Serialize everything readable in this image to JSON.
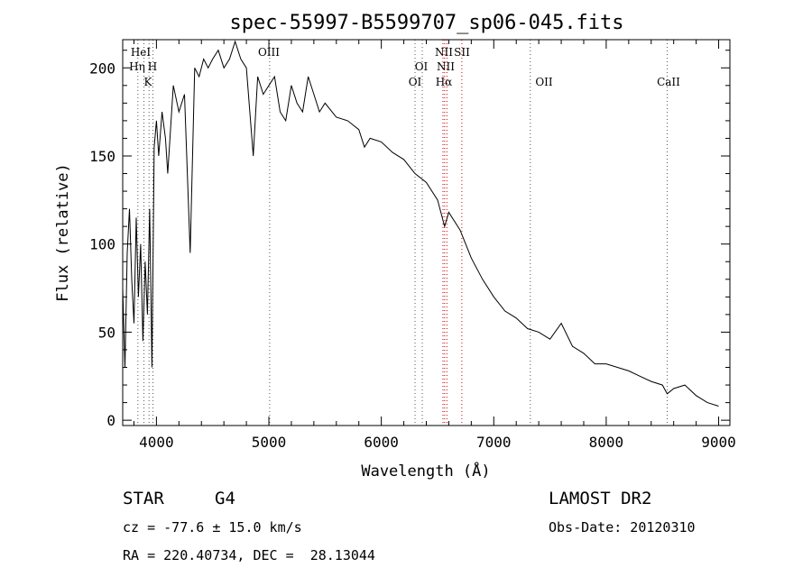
{
  "chart_data": {
    "type": "line",
    "title": "spec-55997-B5599707_sp06-045.fits",
    "xlabel": "Wavelength (Å)",
    "ylabel": "Flux (relative)",
    "xlim": [
      3700,
      9100
    ],
    "ylim": [
      -3,
      216
    ],
    "xticks": [
      4000,
      5000,
      6000,
      7000,
      8000,
      9000
    ],
    "yticks": [
      0,
      50,
      100,
      150,
      200
    ],
    "grid": false,
    "line_color": "#000000",
    "marker_color": "#cc0000",
    "series": [
      {
        "x": [
          3700,
          3720,
          3740,
          3760,
          3780,
          3800,
          3820,
          3840,
          3860,
          3880,
          3900,
          3920,
          3940,
          3960,
          3980,
          4000,
          4020,
          4050,
          4080,
          4100,
          4150,
          4200,
          4250,
          4300,
          4340,
          4380,
          4420,
          4460,
          4500,
          4550,
          4600,
          4650,
          4700,
          4750,
          4800,
          4861,
          4900,
          4950,
          5000,
          5050,
          5100,
          5150,
          5200,
          5250,
          5300,
          5350,
          5400,
          5450,
          5500,
          5600,
          5700,
          5800,
          5850,
          5900,
          6000,
          6100,
          6200,
          6300,
          6400,
          6500,
          6563,
          6600,
          6700,
          6800,
          6900,
          7000,
          7100,
          7200,
          7300,
          7400,
          7500,
          7600,
          7700,
          7800,
          7900,
          8000,
          8100,
          8200,
          8300,
          8400,
          8500,
          8542,
          8600,
          8700,
          8800,
          8900,
          9000
        ],
        "y": [
          75,
          30,
          95,
          120,
          80,
          55,
          115,
          70,
          100,
          45,
          90,
          60,
          120,
          30,
          155,
          170,
          150,
          175,
          160,
          140,
          190,
          175,
          185,
          95,
          200,
          195,
          205,
          200,
          205,
          210,
          200,
          205,
          215,
          205,
          200,
          150,
          195,
          185,
          190,
          195,
          175,
          170,
          190,
          180,
          175,
          195,
          185,
          175,
          180,
          172,
          170,
          165,
          155,
          160,
          158,
          152,
          148,
          140,
          135,
          125,
          110,
          118,
          108,
          92,
          80,
          70,
          62,
          58,
          52,
          50,
          46,
          55,
          42,
          38,
          32,
          32,
          30,
          28,
          25,
          22,
          20,
          15,
          18,
          20,
          14,
          10,
          8
        ]
      }
    ],
    "lines": [
      {
        "label": "HeI",
        "x": 3889
      },
      {
        "label": "Hη",
        "x": 3835
      },
      {
        "label": "H",
        "x": 3969
      },
      {
        "label": "K",
        "x": 3934
      },
      {
        "label": "OIII",
        "x": 5007
      },
      {
        "label": "OI",
        "x": 6300
      },
      {
        "label": "OI",
        "x": 6364
      },
      {
        "label": "NII",
        "x": 6548
      },
      {
        "label": "NII",
        "x": 6583
      },
      {
        "label": "Hα",
        "x": 6563
      },
      {
        "label": "SII",
        "x": 6716
      },
      {
        "label": "OII",
        "x": 7325
      },
      {
        "label": "CaII",
        "x": 8542
      }
    ]
  },
  "info": {
    "object_class": "STAR",
    "subclass": "G4",
    "survey": "LAMOST DR2",
    "redshift_line": "cz = -77.6 ± 15.0 km/s",
    "obs_date_line": "Obs-Date: 20120310",
    "coord_line": "RA = 220.40734, DEC =  28.13044"
  }
}
